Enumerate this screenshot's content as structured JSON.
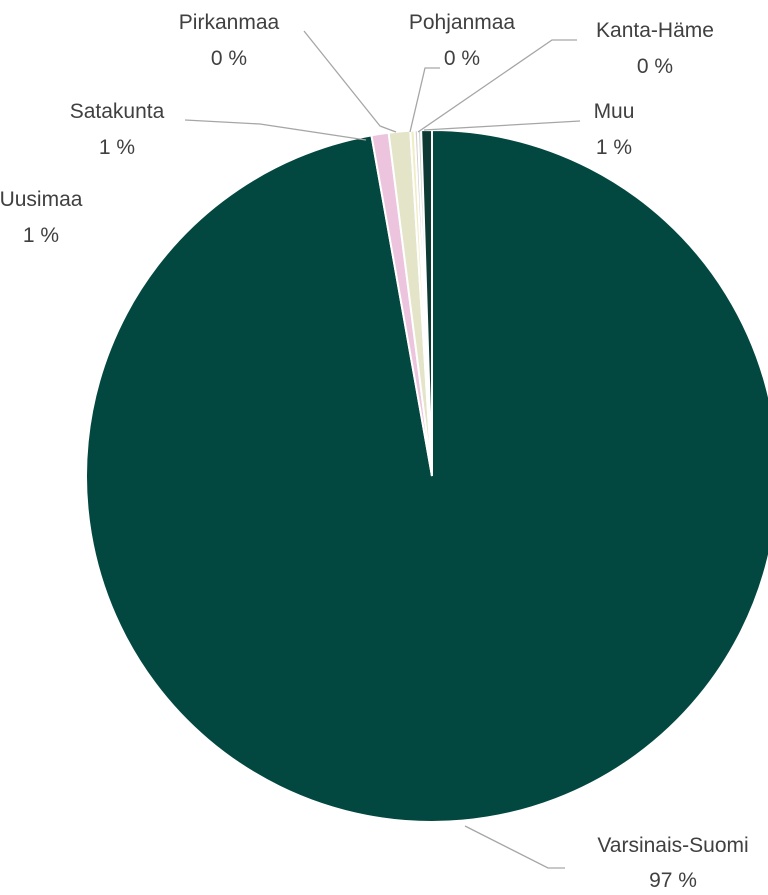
{
  "chart_data": {
    "type": "pie",
    "title": "",
    "unit": "%",
    "start_angle_deg": 0,
    "direction": "clockwise",
    "slices": [
      {
        "name": "Varsinais-Suomi",
        "value": 97.2,
        "label": "97 %",
        "color": "#034840"
      },
      {
        "name": "Uusimaa",
        "value": 0.8,
        "label": "1 %",
        "color": "#ecc4dd"
      },
      {
        "name": "Satakunta",
        "value": 1.0,
        "label": "1 %",
        "color": "#e4e4c8"
      },
      {
        "name": "Pirkanmaa",
        "value": 0.2,
        "label": "0 %",
        "color": "#f0ecc4"
      },
      {
        "name": "Pohjanmaa",
        "value": 0.15,
        "label": "0 %",
        "color": "#d6ccd0"
      },
      {
        "name": "Kanta-Häme",
        "value": 0.15,
        "label": "0 %",
        "color": "#c8d8c8"
      },
      {
        "name": "Muu",
        "value": 0.5,
        "label": "1 %",
        "color": "#0d3b33"
      }
    ]
  }
}
